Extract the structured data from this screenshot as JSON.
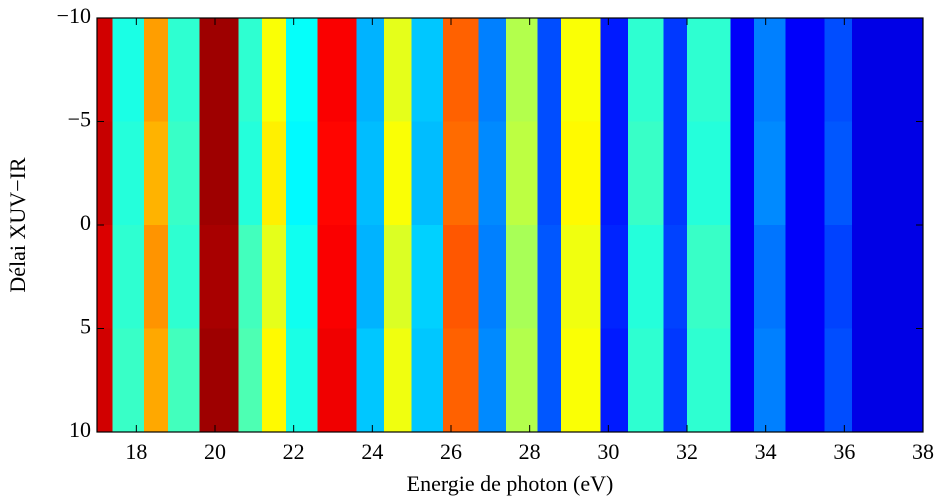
{
  "chart_data": {
    "type": "heatmap",
    "xlabel": "Energie de photon (eV)",
    "ylabel": "Délai XUV−IR",
    "x_edges": [
      17.0,
      17.4,
      18.2,
      18.8,
      19.6,
      20.6,
      21.2,
      21.8,
      22.6,
      23.6,
      24.3,
      25.0,
      25.8,
      26.7,
      27.4,
      28.2,
      28.8,
      29.8,
      30.5,
      31.4,
      32.0,
      33.1,
      33.7,
      34.5,
      35.5,
      36.2,
      38.0
    ],
    "y_edges": [
      -10,
      -5,
      0,
      5,
      10
    ],
    "z": [
      [
        0.92,
        0.4,
        0.72,
        0.42,
        0.97,
        0.42,
        0.62,
        0.38,
        0.88,
        0.3,
        0.6,
        0.32,
        0.78,
        0.25,
        0.55,
        0.2,
        0.62,
        0.15,
        0.42,
        0.18,
        0.42,
        0.12,
        0.25,
        0.12,
        0.2,
        0.1
      ],
      [
        0.93,
        0.41,
        0.7,
        0.43,
        0.97,
        0.41,
        0.64,
        0.37,
        0.87,
        0.31,
        0.62,
        0.31,
        0.77,
        0.26,
        0.56,
        0.2,
        0.63,
        0.15,
        0.43,
        0.18,
        0.41,
        0.12,
        0.26,
        0.12,
        0.21,
        0.1
      ],
      [
        0.91,
        0.42,
        0.73,
        0.42,
        0.96,
        0.44,
        0.6,
        0.39,
        0.88,
        0.3,
        0.59,
        0.33,
        0.79,
        0.25,
        0.54,
        0.21,
        0.61,
        0.16,
        0.41,
        0.19,
        0.43,
        0.12,
        0.24,
        0.12,
        0.19,
        0.1
      ],
      [
        0.92,
        0.43,
        0.71,
        0.44,
        0.97,
        0.45,
        0.63,
        0.4,
        0.89,
        0.32,
        0.61,
        0.32,
        0.78,
        0.26,
        0.55,
        0.21,
        0.62,
        0.15,
        0.42,
        0.18,
        0.42,
        0.12,
        0.25,
        0.12,
        0.2,
        0.1
      ]
    ],
    "colormap": "jet",
    "clim": [
      0,
      1
    ],
    "xlim": [
      17,
      38
    ],
    "xticks": [
      18,
      20,
      22,
      24,
      26,
      28,
      30,
      32,
      34,
      36,
      38
    ],
    "ylim": [
      -10,
      10
    ],
    "yreverse": true,
    "yticks": [
      {
        "value": -10,
        "label": "−10"
      },
      {
        "value": -5,
        "label": "−5"
      },
      0,
      5,
      10
    ]
  }
}
